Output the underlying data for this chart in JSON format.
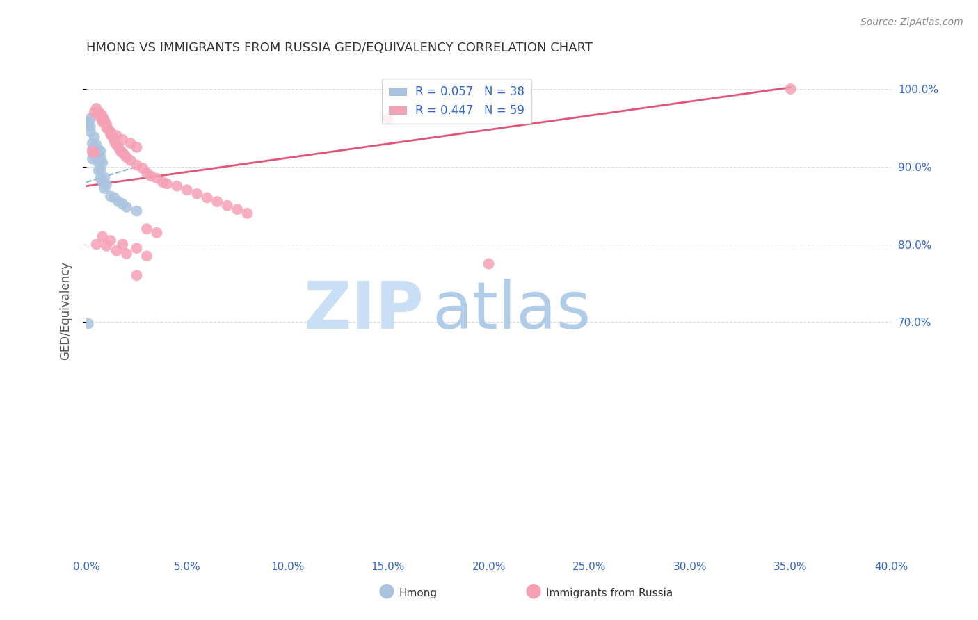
{
  "title": "HMONG VS IMMIGRANTS FROM RUSSIA GED/EQUIVALENCY CORRELATION CHART",
  "source": "Source: ZipAtlas.com",
  "ylabel": "GED/Equivalency",
  "legend_entry1": "R = 0.057   N = 38",
  "legend_entry2": "R = 0.447   N = 59",
  "legend_label1": "Hmong",
  "legend_label2": "Immigrants from Russia",
  "hmong_color": "#aac4e0",
  "russia_color": "#f5a0b5",
  "hmong_line_color": "#6699cc",
  "russia_line_color": "#e05575",
  "legend_text_color": "#3366cc",
  "title_color": "#333333",
  "axis_label_color": "#3366cc",
  "grid_color": "#dddddd",
  "watermark_zip_color": "#c8dff5",
  "watermark_atlas_color": "#b0cce8",
  "xmin": 0.0,
  "xmax": 0.4,
  "ymin": 0.4,
  "ymax": 1.03,
  "hmong_x": [
    0.001,
    0.001,
    0.002,
    0.002,
    0.002,
    0.003,
    0.003,
    0.003,
    0.003,
    0.004,
    0.004,
    0.004,
    0.005,
    0.005,
    0.005,
    0.005,
    0.006,
    0.006,
    0.006,
    0.006,
    0.006,
    0.007,
    0.007,
    0.007,
    0.007,
    0.007,
    0.008,
    0.008,
    0.009,
    0.009,
    0.01,
    0.012,
    0.014,
    0.016,
    0.018,
    0.02,
    0.025,
    0.001
  ],
  "hmong_y": [
    0.958,
    0.955,
    0.962,
    0.952,
    0.945,
    0.93,
    0.922,
    0.918,
    0.91,
    0.938,
    0.925,
    0.918,
    0.928,
    0.92,
    0.915,
    0.91,
    0.922,
    0.916,
    0.91,
    0.905,
    0.895,
    0.92,
    0.913,
    0.908,
    0.896,
    0.885,
    0.905,
    0.88,
    0.886,
    0.872,
    0.877,
    0.862,
    0.86,
    0.855,
    0.852,
    0.848,
    0.843,
    0.698
  ],
  "russia_x": [
    0.003,
    0.004,
    0.005,
    0.006,
    0.007,
    0.008,
    0.008,
    0.009,
    0.01,
    0.011,
    0.012,
    0.013,
    0.014,
    0.015,
    0.016,
    0.017,
    0.018,
    0.019,
    0.02,
    0.022,
    0.025,
    0.028,
    0.03,
    0.032,
    0.035,
    0.038,
    0.04,
    0.045,
    0.05,
    0.055,
    0.06,
    0.065,
    0.07,
    0.075,
    0.08,
    0.004,
    0.006,
    0.008,
    0.01,
    0.012,
    0.015,
    0.018,
    0.022,
    0.025,
    0.03,
    0.035,
    0.008,
    0.012,
    0.018,
    0.025,
    0.03,
    0.005,
    0.01,
    0.015,
    0.02,
    0.025,
    0.15,
    0.35,
    0.2
  ],
  "russia_y": [
    0.92,
    0.918,
    0.975,
    0.97,
    0.968,
    0.965,
    0.958,
    0.96,
    0.955,
    0.948,
    0.942,
    0.938,
    0.932,
    0.928,
    0.925,
    0.92,
    0.918,
    0.915,
    0.912,
    0.908,
    0.902,
    0.898,
    0.892,
    0.888,
    0.885,
    0.88,
    0.878,
    0.875,
    0.87,
    0.865,
    0.86,
    0.855,
    0.85,
    0.845,
    0.84,
    0.97,
    0.965,
    0.96,
    0.95,
    0.945,
    0.94,
    0.935,
    0.93,
    0.925,
    0.82,
    0.815,
    0.81,
    0.805,
    0.8,
    0.795,
    0.785,
    0.8,
    0.798,
    0.792,
    0.788,
    0.76,
    0.962,
    1.0,
    0.775
  ]
}
